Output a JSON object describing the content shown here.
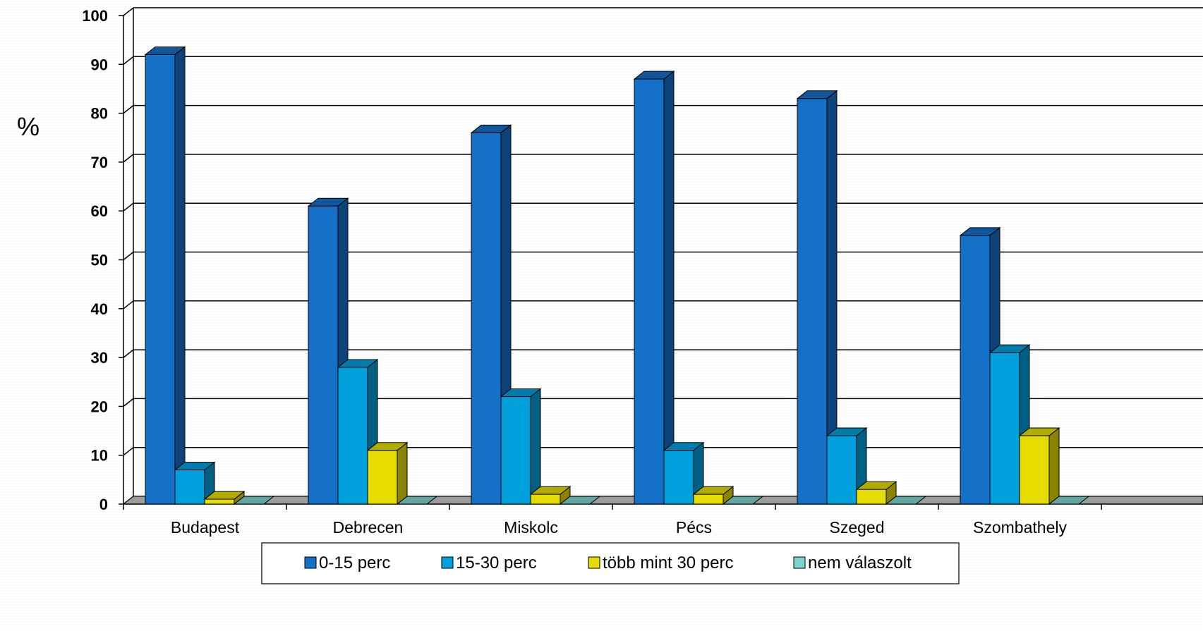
{
  "chart_data": {
    "type": "bar",
    "title": "",
    "xlabel": "",
    "ylabel": "%",
    "ylim": [
      0,
      100
    ],
    "yticks": [
      0,
      10,
      20,
      30,
      40,
      50,
      60,
      70,
      80,
      90,
      100
    ],
    "grid": true,
    "legend_position": "bottom",
    "categories": [
      "Budapest",
      "Debrecen",
      "Miskolc",
      "Pécs",
      "Szeged",
      "Szombathely"
    ],
    "series": [
      {
        "name": "0-15 perc",
        "color": "#1570C8",
        "values": [
          92,
          61,
          76,
          87,
          83,
          55
        ]
      },
      {
        "name": "15-30 perc",
        "color": "#00A0DC",
        "values": [
          7,
          28,
          22,
          11,
          14,
          31
        ]
      },
      {
        "name": "több mint 30 perc",
        "color": "#E6DC00",
        "values": [
          1,
          11,
          2,
          2,
          3,
          14
        ]
      },
      {
        "name": "nem válaszolt",
        "color": "#7FD4D0",
        "values": [
          0,
          0,
          0,
          0,
          0,
          0
        ]
      }
    ]
  }
}
